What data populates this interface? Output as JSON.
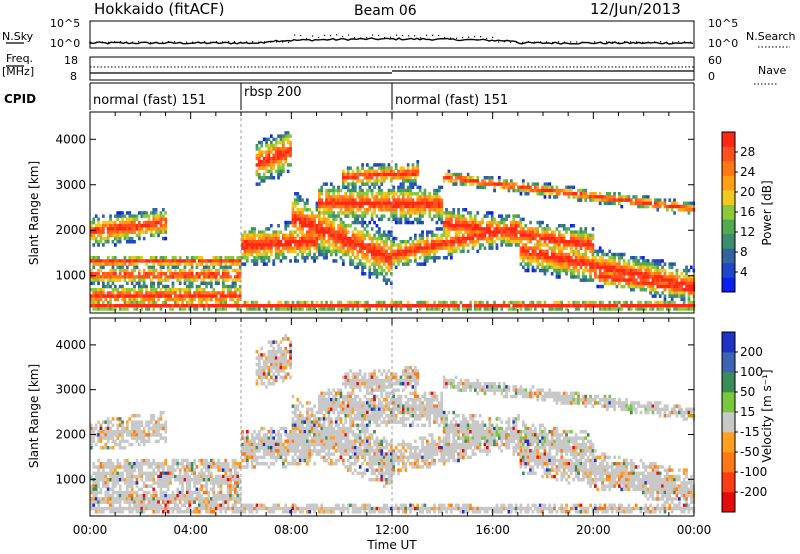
{
  "header": {
    "radar": "Hokkaido (fitACF)",
    "beam": "Beam 06",
    "date": "12/Jun/2013"
  },
  "top_panels": {
    "nsky_label": "N.Sky",
    "nsky_ticks": [
      "10^5",
      "10^0"
    ],
    "nsky_right_ticks": [
      "10^5",
      "10^0"
    ],
    "nsearch_label": "N.Search",
    "freq_label_1": "Freq.",
    "freq_label_2": "[MHz]",
    "freq_ticks": [
      "18",
      "8"
    ],
    "nave_ticks": [
      "60",
      "0"
    ],
    "nave_label": "Nave",
    "cpid_label": "CPID",
    "cpid_segments": [
      {
        "label": "normal (fast) 151",
        "start_h": 0,
        "end_h": 6
      },
      {
        "label": "rbsp 200",
        "start_h": 6,
        "end_h": 12
      },
      {
        "label": "normal (fast) 151",
        "start_h": 12,
        "end_h": 24
      }
    ]
  },
  "x_axis": {
    "label": "Time UT",
    "ticks": [
      "00:00",
      "04:00",
      "08:00",
      "12:00",
      "16:00",
      "20:00",
      "00:00"
    ],
    "tick_hours": [
      0,
      4,
      8,
      12,
      16,
      20,
      24
    ]
  },
  "chart_data": [
    {
      "type": "heatmap",
      "quantity": "power",
      "ylabel": "Slant Range [km]",
      "yticks": [
        1000,
        2000,
        3000,
        4000
      ],
      "ylim": [
        180,
        4600
      ],
      "xlim": [
        0,
        24
      ],
      "colorbar": {
        "label": "Power [dB]",
        "range": [
          0,
          32
        ],
        "ticks": [
          "4",
          "8",
          "12",
          "16",
          "20",
          "24",
          "28"
        ],
        "colors": [
          "#0a1ef0",
          "#1e46c8",
          "#3264a0",
          "#3c8c6e",
          "#50aa50",
          "#8cc83c",
          "#f0c81e",
          "#ffa014",
          "#ff7814",
          "#ff501e",
          "#ff2814"
        ]
      }
    },
    {
      "type": "heatmap",
      "quantity": "velocity",
      "ylabel": "Slant Range [km]",
      "yticks": [
        1000,
        2000,
        3000,
        4000
      ],
      "ylim": [
        180,
        4600
      ],
      "xlim": [
        0,
        24
      ],
      "colorbar": {
        "label": "Velocity [m s⁻¹]",
        "ticks": [
          "200",
          "100",
          "50",
          "15",
          "-15",
          "-50",
          "-100",
          "-200"
        ],
        "colors": [
          "#1e32c8",
          "#3c64b4",
          "#3c8c5a",
          "#78c83c",
          "#c8c8c8",
          "#ffa01e",
          "#ff7814",
          "#ff3c14",
          "#e60a0a"
        ]
      }
    }
  ]
}
